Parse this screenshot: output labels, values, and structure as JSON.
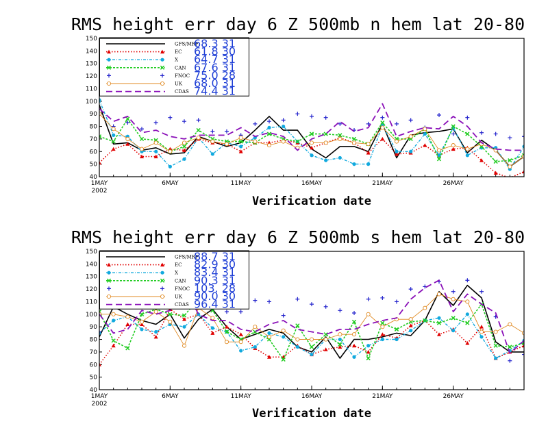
{
  "chart_data": [
    {
      "type": "line",
      "title": "RMS height err   day 6  Z 500mb   n hem   lat 20-80",
      "xlabel": "Verification date",
      "x_ticks": [
        "1MAY",
        "6MAY",
        "11MAY",
        "16MAY",
        "21MAY",
        "26MAY"
      ],
      "x_year": "2002",
      "x": [
        1,
        2,
        3,
        4,
        5,
        6,
        7,
        8,
        9,
        10,
        11,
        12,
        13,
        14,
        15,
        16,
        17,
        18,
        19,
        20,
        21,
        22,
        23,
        24,
        25,
        26,
        27,
        28,
        29,
        30,
        31
      ],
      "xlim": [
        1,
        31
      ],
      "ylim": [
        40,
        150
      ],
      "yticks": [
        40,
        50,
        60,
        70,
        80,
        90,
        100,
        110,
        120,
        130,
        140,
        150
      ],
      "series": [
        {
          "name": "GFS/MRF",
          "stat": "68.3  31",
          "color": "#000000",
          "dash": "",
          "marker": "none",
          "width": 1.6,
          "values": [
            97,
            66,
            67,
            61,
            63,
            58,
            59,
            72,
            68,
            64,
            67,
            77,
            88,
            77,
            77,
            62,
            55,
            64,
            64,
            60,
            82,
            55,
            73,
            75,
            76,
            78,
            59,
            69,
            61,
            48,
            56
          ]
        },
        {
          "name": "EC",
          "stat": "61.8  30",
          "color": "#e00000",
          "dash": "1.5,2.5",
          "marker": "tri",
          "width": 1.6,
          "values": [
            51,
            62,
            66,
            56,
            56,
            62,
            61,
            70,
            67,
            66,
            60,
            67,
            67,
            69,
            67,
            63,
            67,
            71,
            67,
            59,
            70,
            58,
            59,
            65,
            57,
            62,
            63,
            53,
            43,
            39,
            44
          ]
        },
        {
          "name": "X",
          "stat": "64.7  31",
          "color": "#11a9de",
          "dash": "4,2,1,2",
          "marker": "dot",
          "width": 1.4,
          "values": [
            101,
            73,
            72,
            60,
            60,
            48,
            54,
            71,
            58,
            67,
            64,
            71,
            79,
            80,
            68,
            57,
            53,
            55,
            50,
            50,
            81,
            60,
            60,
            74,
            57,
            79,
            57,
            63,
            63,
            46,
            64
          ]
        },
        {
          "name": "CAN",
          "stat": "67.6  31",
          "color": "#22cc22",
          "dash": "3,2",
          "marker": "x",
          "width": 1.6,
          "values": [
            72,
            68,
            86,
            70,
            69,
            60,
            64,
            77,
            70,
            68,
            68,
            67,
            74,
            70,
            68,
            74,
            74,
            73,
            70,
            66,
            83,
            70,
            70,
            78,
            54,
            80,
            74,
            64,
            52,
            53,
            57
          ]
        },
        {
          "name": "FNOC",
          "stat": "75.0  28",
          "color": "#2222cc",
          "dash": "none",
          "marker": "plus",
          "width": 1.0,
          "values": [
            105,
            80,
            83,
            78,
            83,
            87,
            84,
            85,
            76,
            76,
            73,
            82,
            84,
            85,
            90,
            88,
            87,
            82,
            77,
            82,
            87,
            82,
            85,
            79,
            89,
            74,
            87,
            75,
            74,
            71,
            72
          ]
        },
        {
          "name": "UK",
          "stat": "68.0  31",
          "color": "#e08a22",
          "dash": "",
          "marker": "circle",
          "width": 0.9,
          "values": [
            90,
            78,
            70,
            62,
            67,
            60,
            67,
            71,
            68,
            66,
            71,
            68,
            65,
            68,
            63,
            67,
            67,
            70,
            67,
            66,
            79,
            68,
            72,
            78,
            61,
            65,
            62,
            66,
            61,
            48,
            56
          ]
        },
        {
          "name": "CDAS",
          "stat": "74.4  31",
          "color": "#8a10b8",
          "dash": "9,5",
          "marker": "none",
          "width": 1.8,
          "values": [
            94,
            84,
            88,
            75,
            77,
            72,
            70,
            73,
            73,
            73,
            79,
            72,
            75,
            72,
            61,
            70,
            74,
            84,
            76,
            79,
            98,
            72,
            76,
            79,
            78,
            88,
            80,
            67,
            62,
            61,
            61
          ]
        }
      ]
    },
    {
      "type": "line",
      "title": "RMS height err   day 6  Z 500mb   s hem   lat 20-80",
      "xlabel": "Verification date",
      "x_ticks": [
        "1MAY",
        "6MAY",
        "11MAY",
        "16MAY",
        "21MAY",
        "26MAY"
      ],
      "x_year": "2002",
      "x": [
        1,
        2,
        3,
        4,
        5,
        6,
        7,
        8,
        9,
        10,
        11,
        12,
        13,
        14,
        15,
        16,
        17,
        18,
        19,
        20,
        21,
        22,
        23,
        24,
        25,
        26,
        27,
        28,
        29,
        30,
        31
      ],
      "xlim": [
        1,
        31
      ],
      "ylim": [
        40,
        150
      ],
      "yticks": [
        40,
        50,
        60,
        70,
        80,
        90,
        100,
        110,
        120,
        130,
        140,
        150
      ],
      "series": [
        {
          "name": "GFS/MRF",
          "stat": "88.7  31",
          "color": "#000000",
          "dash": "",
          "marker": "none",
          "width": 1.6,
          "values": [
            82,
            106,
            100,
            95,
            92,
            100,
            81,
            96,
            104,
            90,
            80,
            84,
            88,
            85,
            74,
            70,
            82,
            65,
            80,
            80,
            82,
            85,
            83,
            95,
            118,
            107,
            123,
            113,
            78,
            70,
            70
          ]
        },
        {
          "name": "EC",
          "stat": "82.9  30",
          "color": "#e00000",
          "dash": "1.5,2.5",
          "marker": "tri",
          "width": 1.6,
          "values": [
            60,
            75,
            92,
            92,
            82,
            104,
            96,
            100,
            85,
            90,
            84,
            73,
            66,
            66,
            75,
            68,
            72,
            74,
            75,
            70,
            84,
            81,
            91,
            95,
            84,
            88,
            77,
            90,
            65,
            70,
            75
          ]
        },
        {
          "name": "X",
          "stat": "83.4  31",
          "color": "#11a9de",
          "dash": "4,2,1,2",
          "marker": "dot",
          "width": 1.4,
          "values": [
            85,
            95,
            98,
            88,
            86,
            92,
            90,
            100,
            89,
            86,
            71,
            74,
            85,
            82,
            74,
            68,
            80,
            80,
            66,
            75,
            80,
            80,
            87,
            95,
            97,
            87,
            100,
            82,
            65,
            71,
            79
          ]
        },
        {
          "name": "CAN",
          "stat": "90.3  31",
          "color": "#22cc22",
          "dash": "3,2",
          "marker": "x",
          "width": 1.6,
          "values": [
            102,
            79,
            73,
            100,
            104,
            100,
            99,
            112,
            103,
            86,
            80,
            86,
            80,
            64,
            91,
            74,
            84,
            76,
            94,
            65,
            93,
            88,
            94,
            95,
            93,
            97,
            93,
            108,
            75,
            74,
            77
          ]
        },
        {
          "name": "FNOC",
          "stat": "103.  28",
          "color": "#2222cc",
          "dash": "none",
          "marker": "plus",
          "width": 1.0,
          "values": [
            86,
            109,
            111,
            108,
            118,
            120,
            115,
            116,
            109,
            102,
            102,
            111,
            110,
            99,
            112,
            108,
            106,
            103,
            101,
            112,
            113,
            110,
            120,
            122,
            126,
            118,
            127,
            118,
            98,
            63,
            68
          ]
        },
        {
          "name": "UK",
          "stat": "90.0  30",
          "color": "#e08a22",
          "dash": "",
          "marker": "circle",
          "width": 0.9,
          "values": [
            100,
            100,
            98,
            94,
            102,
            94,
            75,
            105,
            97,
            78,
            78,
            90,
            82,
            87,
            80,
            80,
            80,
            84,
            84,
            100,
            90,
            96,
            96,
            105,
            116,
            112,
            110,
            86,
            86,
            92,
            85
          ]
        },
        {
          "name": "CDAS",
          "stat": "96.4  31",
          "color": "#8a10b8",
          "dash": "9,5",
          "marker": "none",
          "width": 1.8,
          "values": [
            100,
            85,
            88,
            103,
            100,
            103,
            122,
            100,
            95,
            95,
            88,
            86,
            92,
            95,
            88,
            86,
            84,
            88,
            88,
            92,
            95,
            97,
            112,
            121,
            127,
            102,
            116,
            108,
            101,
            69,
            79
          ]
        }
      ]
    }
  ]
}
